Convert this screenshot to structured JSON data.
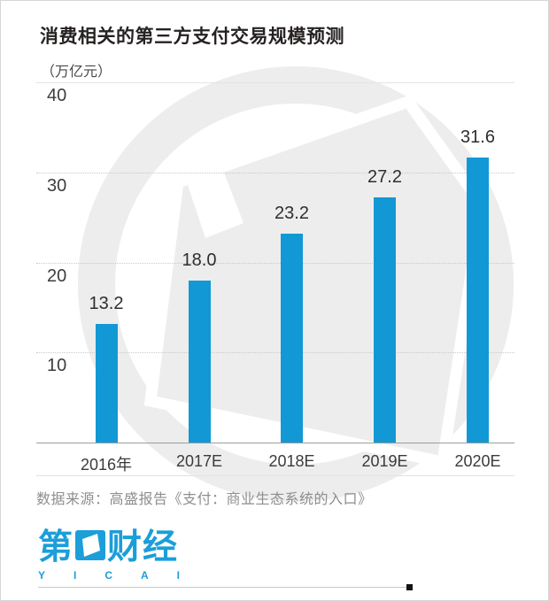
{
  "header": {
    "title": "消费相关的第三方支付交易规模预测",
    "unit_label": "（万亿元）"
  },
  "chart_data": {
    "type": "bar",
    "title": "消费相关的第三方支付交易规模预测",
    "ylabel": "（万亿元）",
    "categories": [
      "2016年",
      "2017E",
      "2018E",
      "2019E",
      "2020E"
    ],
    "values": [
      13.2,
      18.0,
      23.2,
      27.2,
      31.6
    ],
    "value_labels": [
      "13.2",
      "18.0",
      "23.2",
      "27.2",
      "31.6"
    ],
    "ylim": [
      0,
      40
    ],
    "yticks": [
      40,
      30,
      20,
      10
    ],
    "grid": "horizontal-dotted",
    "legend": "none",
    "bar_color": "#1298d5"
  },
  "footer": {
    "source": "数据来源：高盛报告《支付：商业生态系统的入口》",
    "logo": {
      "prefix_char": "第",
      "suffix_chars": "财经",
      "latin": "YICAI"
    }
  },
  "colors": {
    "bar": "#1298d5",
    "logo_blue": "#1b9ed9",
    "watermark": "#ededed",
    "title_text": "#272222",
    "axis_text": "#3d3d3d",
    "muted_text": "#8e8e8e"
  }
}
